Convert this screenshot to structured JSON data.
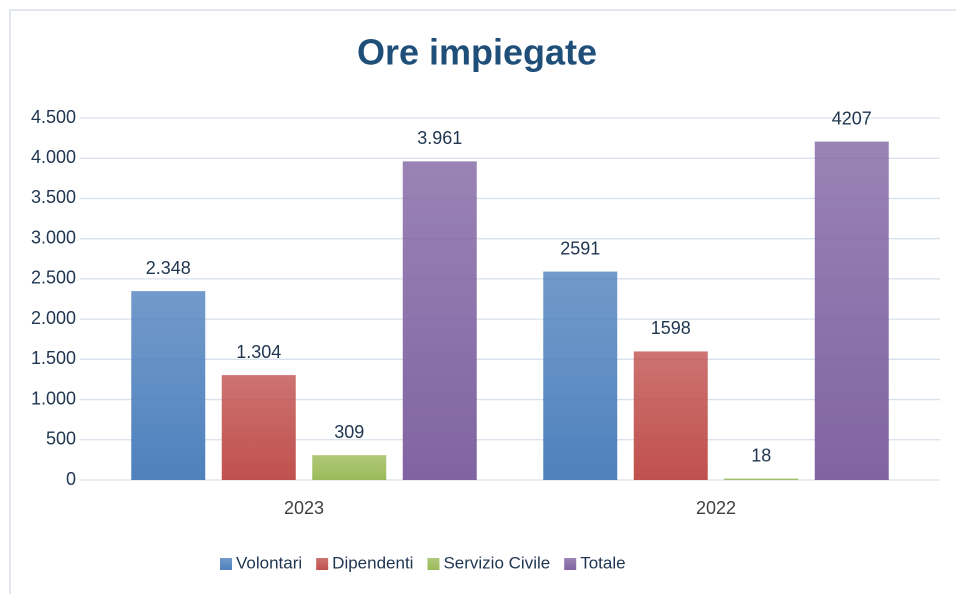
{
  "chart_data": {
    "type": "bar",
    "title": "Ore impiegate",
    "categories": [
      "2023",
      "2022"
    ],
    "series": [
      {
        "name": "Volontari",
        "color": "#4f81bd",
        "values": [
          2348,
          2591
        ],
        "value_labels": [
          "2.348",
          "2591"
        ]
      },
      {
        "name": "Dipendenti",
        "color": "#c0504d",
        "values": [
          1304,
          1598
        ],
        "value_labels": [
          "1.304",
          "1598"
        ]
      },
      {
        "name": "Servizio Civile",
        "color": "#9bbb59",
        "values": [
          309,
          18
        ]
      },
      {
        "name": "Totale",
        "color": "#8064a2",
        "values": [
          3961,
          4207
        ],
        "value_labels": [
          "3.961",
          "4207"
        ]
      }
    ],
    "ylim": [
      0,
      4500
    ],
    "yticks": [
      0,
      500,
      {
        "value": 1000,
        "label": "1.000"
      },
      {
        "value": 1500,
        "label": "1.500"
      },
      {
        "value": 2000,
        "label": "2.000"
      },
      {
        "value": 2500,
        "label": "2.500"
      },
      {
        "value": 3000,
        "label": "3.000"
      },
      {
        "value": 3500,
        "label": "3.500"
      },
      {
        "value": 4000,
        "label": "4.000"
      },
      {
        "value": 4500,
        "label": "4.500"
      }
    ],
    "grid": true,
    "legend": "bottom"
  }
}
